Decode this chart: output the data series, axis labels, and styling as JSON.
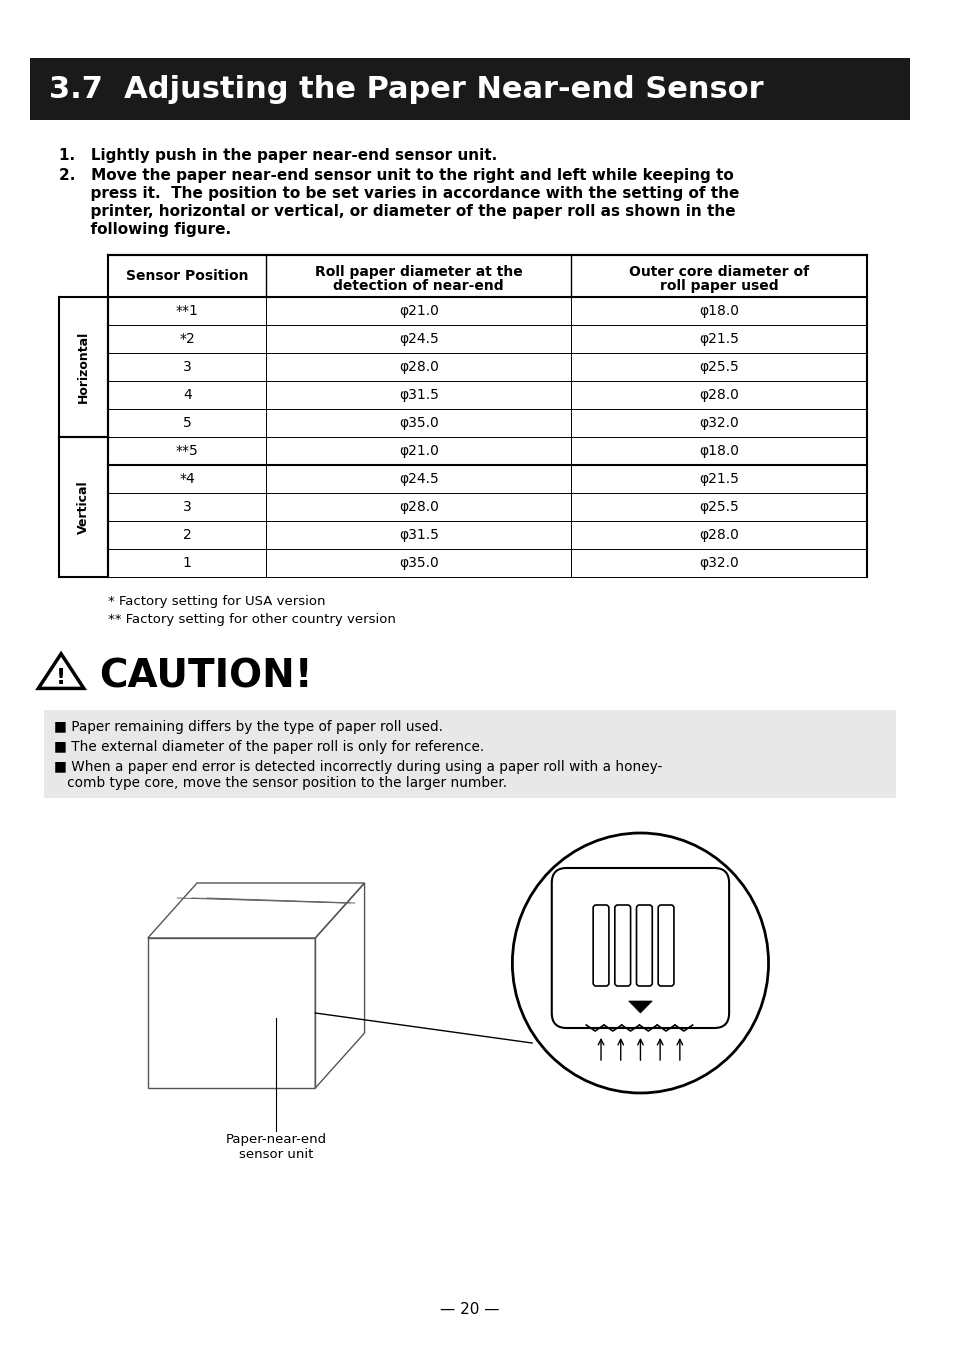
{
  "title": "3.7  Adjusting the Paper Near-end Sensor",
  "title_bg": "#1a1a1a",
  "title_color": "#ffffff",
  "page_bg": "#ffffff",
  "body_text_1": "1.   Lightly push in the paper near-end sensor unit.",
  "body_text_2": "2.   Move the paper near-end sensor unit to the right and left while keeping to\n      press it.  The position to be set varies in accordance with the setting of the\n      printer, horizontal or vertical, or diameter of the paper roll as shown in the\n      following figure.",
  "table_headers": [
    "Sensor Position",
    "Roll paper diameter at the\ndetection of near-end",
    "Outer core diameter of\nroll paper used"
  ],
  "horizontal_rows": [
    [
      "**1",
      "φ21.0",
      "φ18.0"
    ],
    [
      "*2",
      "φ24.5",
      "φ21.5"
    ],
    [
      "3",
      "φ28.0",
      "φ25.5"
    ],
    [
      "4",
      "φ31.5",
      "φ28.0"
    ],
    [
      "5",
      "φ35.0",
      "φ32.0"
    ]
  ],
  "vertical_rows": [
    [
      "**5",
      "φ21.0",
      "φ18.0"
    ],
    [
      "*4",
      "φ24.5",
      "φ21.5"
    ],
    [
      "3",
      "φ28.0",
      "φ25.5"
    ],
    [
      "2",
      "φ31.5",
      "φ28.0"
    ],
    [
      "1",
      "φ35.0",
      "φ32.0"
    ]
  ],
  "footnote1": "* Factory setting for USA version",
  "footnote2": "** Factory setting for other country version",
  "caution_title": "CAUTION!",
  "caution_bullets": [
    "Paper remaining differs by the type of paper roll used.",
    "The external diameter of the paper roll is only for reference.",
    "When a paper end error is detected incorrectly during using a paper roll with a honey-\n   comb type core, move the sensor position to the larger number."
  ],
  "caution_bg": "#e8e8e8",
  "image_caption": "Paper-near-end\nsensor unit",
  "page_number": "— 20 —"
}
